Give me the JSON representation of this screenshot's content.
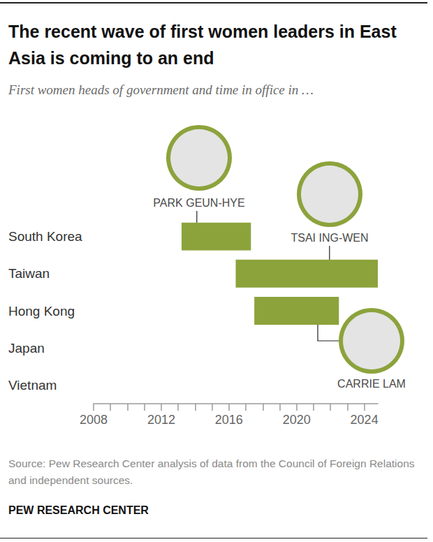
{
  "chart_data": {
    "type": "range_bar",
    "orientation": "horizontal",
    "title": "The recent wave of first women leaders in East Asia is coming to an end",
    "subtitle": "First women heads of government and time in office in …",
    "source": "Source: Pew Research Center analysis of data from the Council of Foreign Relations and independent sources.",
    "credit": "PEW RESEARCH CENTER",
    "categories": [
      "South Korea",
      "Taiwan",
      "Hong Kong",
      "Japan",
      "Vietnam"
    ],
    "series": [
      {
        "name": "PARK GEUN-HYE",
        "category": "South Korea",
        "start": 2013.2,
        "end": 2017.3
      },
      {
        "name": "TSAI ING-WEN",
        "category": "Taiwan",
        "start": 2016.4,
        "end": 2024.8
      },
      {
        "name": "CARRIE LAM",
        "category": "Hong Kong",
        "start": 2017.5,
        "end": 2022.5
      }
    ],
    "color": "#8ca33c",
    "xlim": [
      2008,
      2024.8
    ],
    "xticks": [
      2008,
      2012,
      2016,
      2020,
      2024
    ],
    "grid": false
  }
}
